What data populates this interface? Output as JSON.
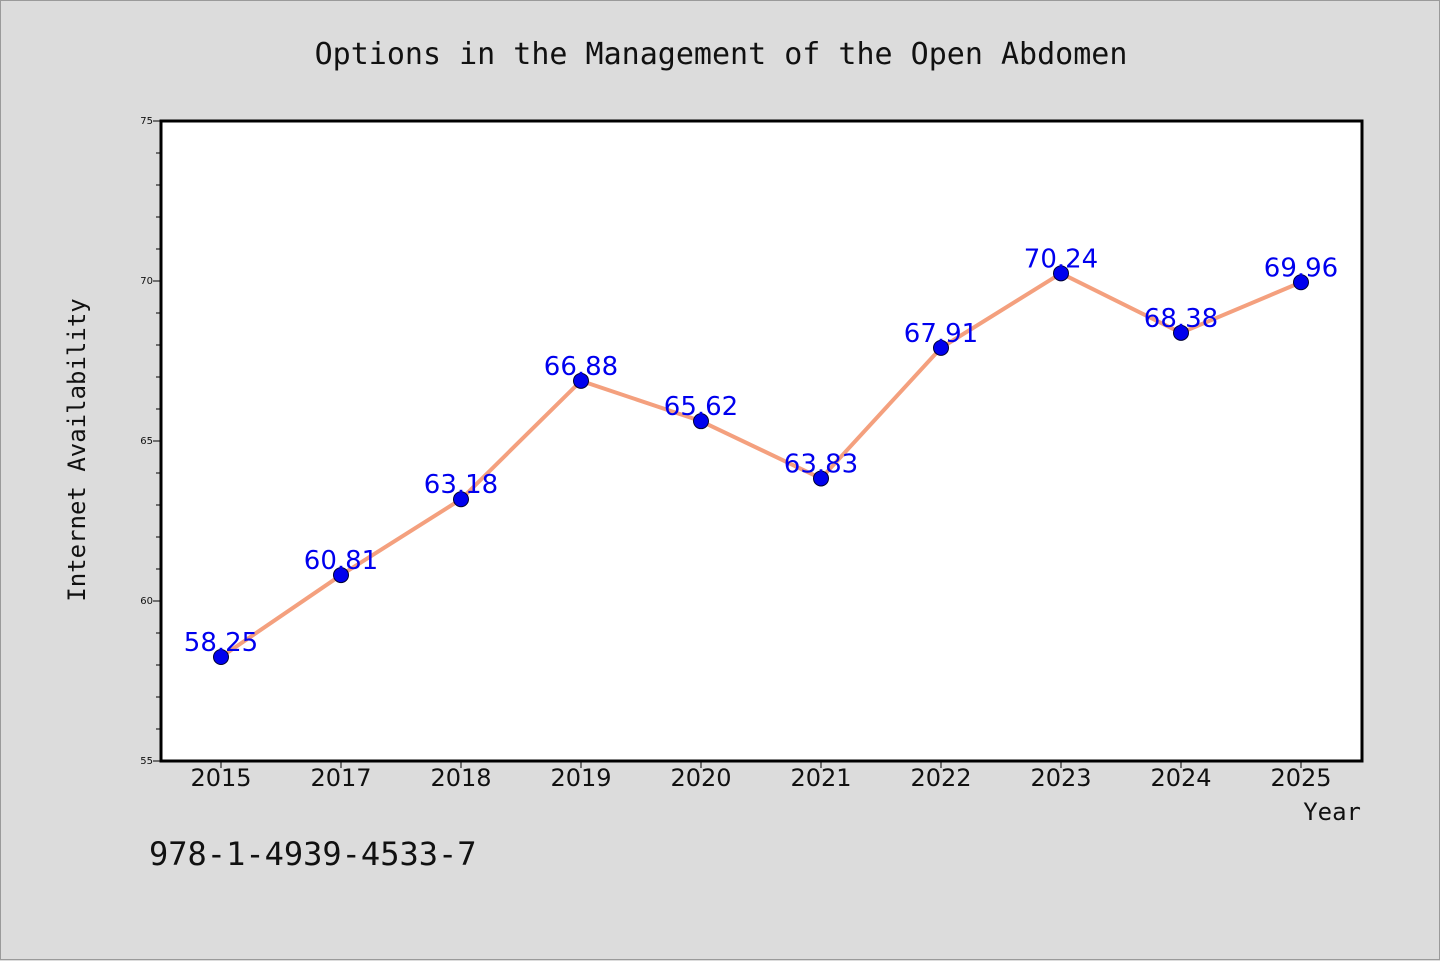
{
  "chart_data": {
    "type": "line",
    "title": "Options in the Management of the Open Abdomen",
    "xlabel": "Year",
    "ylabel": "Internet Availability",
    "categories": [
      "2015",
      "2017",
      "2018",
      "2019",
      "2020",
      "2021",
      "2022",
      "2023",
      "2024",
      "2025"
    ],
    "values": [
      58.25,
      60.81,
      63.18,
      66.88,
      65.62,
      63.83,
      67.91,
      70.24,
      68.38,
      69.96
    ],
    "data_labels": [
      "58.25",
      "60.81",
      "63.18",
      "66.88",
      "65.62",
      "63.83",
      "67.91",
      "70.24",
      "68.38",
      "69.96"
    ],
    "ylim": [
      55,
      75
    ],
    "yticks": [
      55,
      60,
      65,
      70,
      75
    ],
    "grid": false,
    "legend": "none",
    "colors": {
      "line": "#f4a07e",
      "marker": "#0000ee",
      "label": "#0000ee",
      "plot_bg": "#ffffff",
      "page_bg": "#dcdcdc"
    }
  },
  "footer": {
    "isbn": "978-1-4939-4533-7"
  }
}
